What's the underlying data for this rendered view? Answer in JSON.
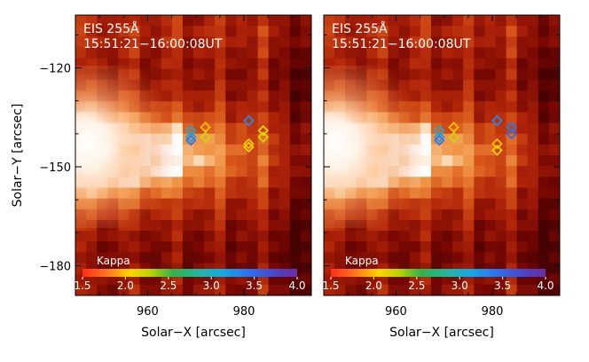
{
  "chart_data": [
    {
      "type": "heatmap",
      "title": "EIS 255Å",
      "subtitle": "15:51:21−16:00:08UT",
      "xlabel": "Solar−X [arcsec]",
      "ylabel": "Solar−Y [arcsec]",
      "xlim": [
        945,
        994
      ],
      "ylim": [
        -189,
        -104
      ],
      "xticks": [
        {
          "v": 960,
          "label": "960"
        },
        {
          "v": 980,
          "label": "980"
        }
      ],
      "yticks": [
        {
          "v": -120,
          "label": "−120"
        },
        {
          "v": -150,
          "label": "−150"
        },
        {
          "v": -180,
          "label": "−180"
        }
      ],
      "colorbar": {
        "label": "Kappa",
        "range": [
          1.5,
          4.0
        ],
        "ticks": [
          {
            "v": 1.5,
            "label": "1.5"
          },
          {
            "v": 2.0,
            "label": "2.0"
          },
          {
            "v": 2.5,
            "label": "2.5"
          },
          {
            "v": 3.0,
            "label": "3.0"
          },
          {
            "v": 3.5,
            "label": "3.5"
          },
          {
            "v": 4.0,
            "label": "4.0"
          }
        ]
      },
      "points": [
        {
          "x": 969,
          "y": -139,
          "kappa": 3.1
        },
        {
          "x": 969,
          "y": -141,
          "kappa": 3.2
        },
        {
          "x": 969,
          "y": -142,
          "kappa": 3.4
        },
        {
          "x": 972,
          "y": -138,
          "kappa": 2.0
        },
        {
          "x": 972,
          "y": -141,
          "kappa": 2.2
        },
        {
          "x": 981,
          "y": -136,
          "kappa": 3.3
        },
        {
          "x": 981,
          "y": -143,
          "kappa": 2.0
        },
        {
          "x": 981,
          "y": -144,
          "kappa": 2.1
        },
        {
          "x": 984,
          "y": -139,
          "kappa": 2.1
        },
        {
          "x": 984,
          "y": -141,
          "kappa": 2.2
        }
      ]
    },
    {
      "type": "heatmap",
      "title": "EIS 255Å",
      "subtitle": "15:51:21−16:00:08UT",
      "xlabel": "Solar−X [arcsec]",
      "ylabel": "",
      "xlim": [
        945,
        994
      ],
      "ylim": [
        -189,
        -104
      ],
      "xticks": [
        {
          "v": 960,
          "label": "960"
        },
        {
          "v": 980,
          "label": "980"
        }
      ],
      "yticks": [],
      "colorbar": {
        "label": "Kappa",
        "range": [
          1.5,
          4.0
        ],
        "ticks": [
          {
            "v": 1.5,
            "label": "1.5"
          },
          {
            "v": 2.0,
            "label": "2.0"
          },
          {
            "v": 2.5,
            "label": "2.5"
          },
          {
            "v": 3.0,
            "label": "3.0"
          },
          {
            "v": 3.5,
            "label": "3.5"
          },
          {
            "v": 4.0,
            "label": "4.0"
          }
        ]
      },
      "points": [
        {
          "x": 969,
          "y": -139,
          "kappa": 3.1
        },
        {
          "x": 969,
          "y": -141,
          "kappa": 3.2
        },
        {
          "x": 969,
          "y": -142,
          "kappa": 3.4
        },
        {
          "x": 972,
          "y": -138,
          "kappa": 2.0
        },
        {
          "x": 972,
          "y": -141,
          "kappa": 2.2
        },
        {
          "x": 981,
          "y": -136,
          "kappa": 3.3
        },
        {
          "x": 981,
          "y": -143,
          "kappa": 2.0
        },
        {
          "x": 981,
          "y": -145,
          "kappa": 2.1
        },
        {
          "x": 984,
          "y": -138,
          "kappa": 3.4
        },
        {
          "x": 984,
          "y": -140,
          "kappa": 3.5
        }
      ]
    }
  ]
}
